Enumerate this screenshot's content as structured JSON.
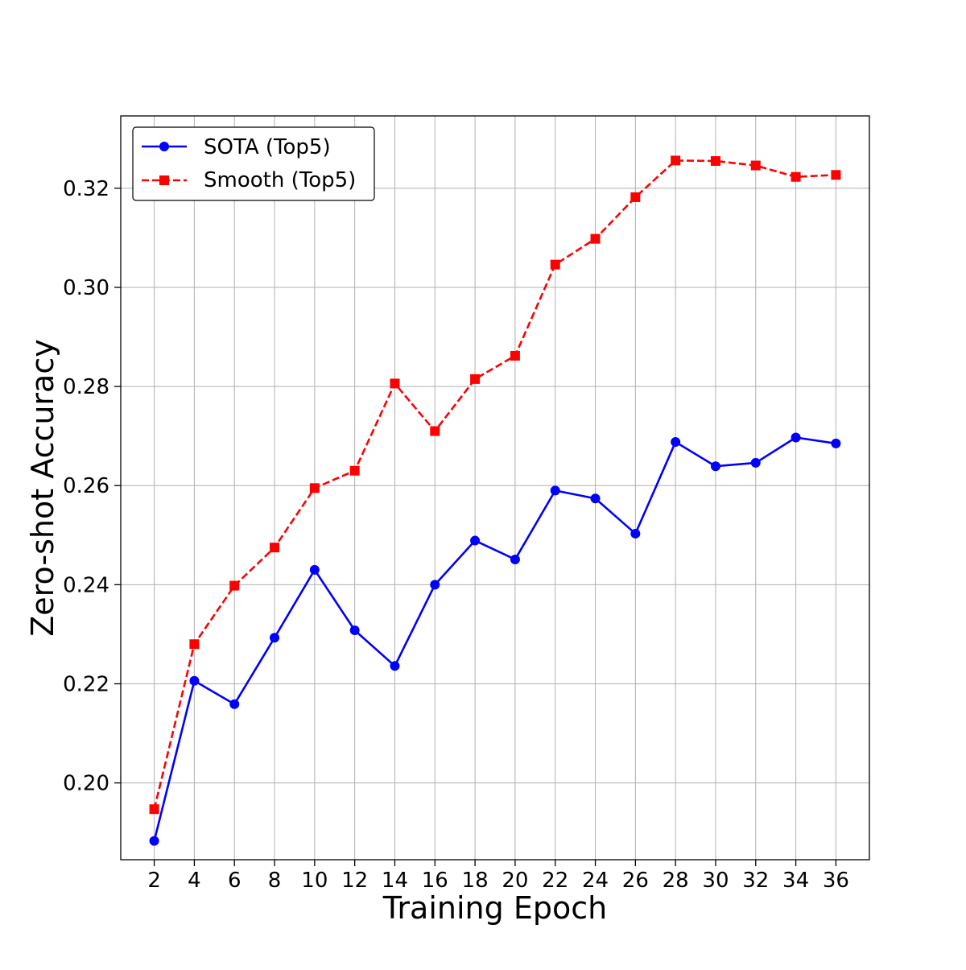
{
  "chart_data": {
    "type": "line",
    "xlabel": "Training Epoch",
    "ylabel": "Zero-shot Accuracy",
    "x": [
      2,
      4,
      6,
      8,
      10,
      12,
      14,
      16,
      18,
      20,
      22,
      24,
      26,
      28,
      30,
      32,
      34,
      36
    ],
    "xticks": [
      "2",
      "4",
      "6",
      "8",
      "10",
      "12",
      "14",
      "16",
      "18",
      "20",
      "22",
      "24",
      "26",
      "28",
      "30",
      "32",
      "34",
      "36"
    ],
    "yticks": [
      "0.20",
      "0.22",
      "0.24",
      "0.26",
      "0.28",
      "0.30",
      "0.32"
    ],
    "ytick_values": [
      0.2,
      0.22,
      0.24,
      0.26,
      0.28,
      0.3,
      0.32
    ],
    "xlim": [
      0.33,
      37.67
    ],
    "ylim": [
      0.1845,
      0.3346
    ],
    "grid": true,
    "legend_position": "top-left",
    "series": [
      {
        "name": "SOTA (Top5)",
        "color": "#0000ff",
        "line_style": "solid",
        "marker": "circle",
        "values": [
          0.1883,
          0.2206,
          0.2159,
          0.2293,
          0.243,
          0.2308,
          0.2236,
          0.24,
          0.2489,
          0.2451,
          0.259,
          0.2574,
          0.2503,
          0.2688,
          0.2639,
          0.2646,
          0.2697,
          0.2685
        ]
      },
      {
        "name": "Smooth (Top5)",
        "color": "#ff0000",
        "line_style": "dashed",
        "marker": "square",
        "values": [
          0.1947,
          0.228,
          0.2398,
          0.2475,
          0.2595,
          0.263,
          0.2806,
          0.271,
          0.2815,
          0.2862,
          0.3046,
          0.3098,
          0.3182,
          0.3256,
          0.3255,
          0.3246,
          0.3223,
          0.3227
        ]
      }
    ]
  }
}
